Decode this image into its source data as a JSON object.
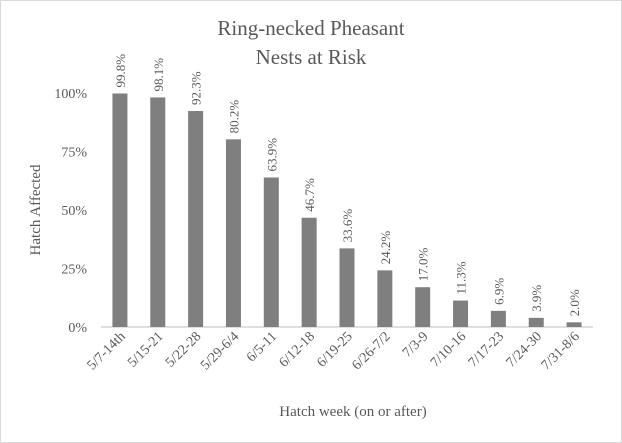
{
  "chart_data": {
    "type": "bar",
    "title_lines": [
      "Ring-necked Pheasant",
      "Nests at Risk"
    ],
    "x_label": "Hatch week (on or after)",
    "y_label": "Hatch Affected",
    "categories": [
      "5/7-14th",
      "5/15-21",
      "5/22-28",
      "5/29-6/4",
      "6/5-11",
      "6/12-18",
      "6/19-25",
      "6/26-7/2",
      "7/3-9",
      "7/10-16",
      "7/17-23",
      "7/24-30",
      "7/31-8/6"
    ],
    "values": [
      99.8,
      98.1,
      92.3,
      80.2,
      63.9,
      46.7,
      33.6,
      24.2,
      17.0,
      11.3,
      6.9,
      3.9,
      2.0
    ],
    "value_labels": [
      "99.8%",
      "98.1%",
      "92.3%",
      "80.2%",
      "63.9%",
      "46.7%",
      "33.6%",
      "24.2%",
      "17.0%",
      "11.3%",
      "6.9%",
      "3.9%",
      "2.0%"
    ],
    "color": "#7f7f7f",
    "ylim": [
      0,
      100
    ],
    "yticks": [
      {
        "value": 0,
        "label": "0%"
      },
      {
        "value": 25,
        "label": "25%"
      },
      {
        "value": 50,
        "label": "50%"
      },
      {
        "value": 75,
        "label": "75%"
      },
      {
        "value": 100,
        "label": "100%"
      }
    ],
    "grid": false
  }
}
